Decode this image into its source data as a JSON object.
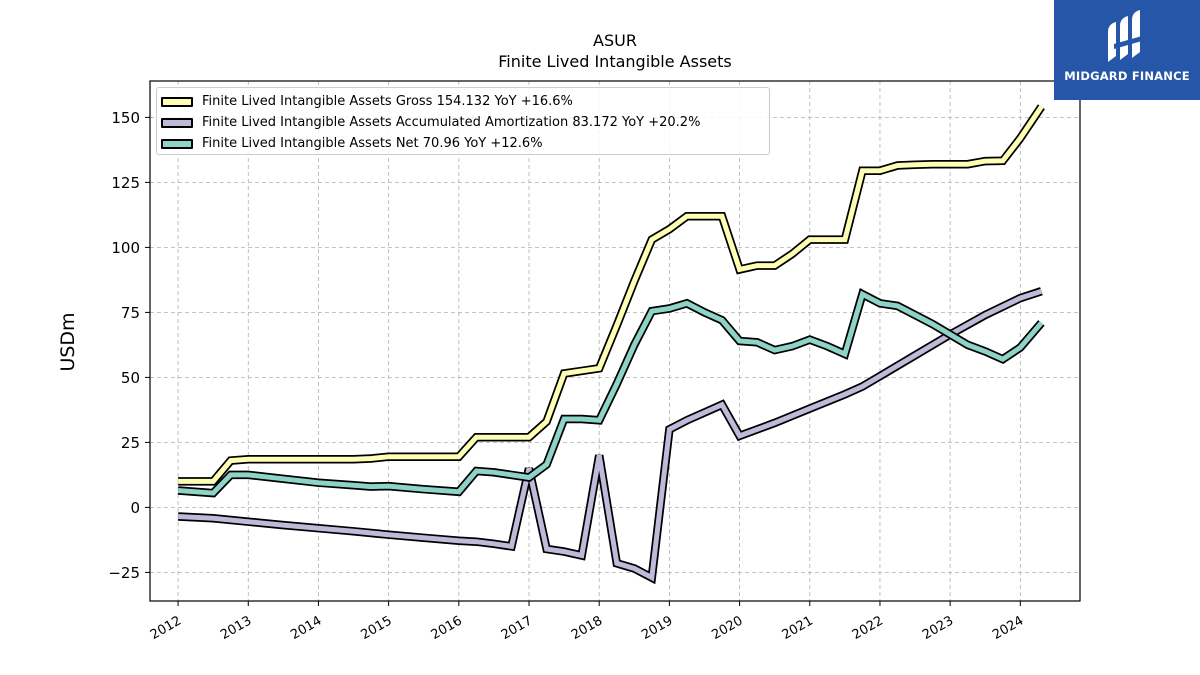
{
  "header": {
    "title": "ASUR",
    "subtitle": "Finite Lived Intangible Assets"
  },
  "logo": {
    "text": "MIDGARD FINANCE",
    "background": "#2656a8",
    "icon": "midgard-logo-icon"
  },
  "chart_data": {
    "type": "line",
    "title": "ASUR",
    "subtitle": "Finite Lived Intangible Assets",
    "xlabel": "",
    "ylabel": "USDm",
    "xlim": [
      2011.6,
      2024.85
    ],
    "ylim": [
      -36,
      164
    ],
    "x_ticks": [
      "2012",
      "2013",
      "2014",
      "2015",
      "2016",
      "2017",
      "2018",
      "2019",
      "2020",
      "2021",
      "2022",
      "2023",
      "2024"
    ],
    "y_ticks": [
      -25,
      0,
      25,
      50,
      75,
      100,
      125,
      150
    ],
    "y_tick_labels": [
      "−25",
      "0",
      "25",
      "50",
      "75",
      "100",
      "125",
      "150"
    ],
    "grid": true,
    "legend_position": "top-left",
    "series": [
      {
        "name": "Finite Lived Intangible Assets Gross",
        "legend_label": "Finite Lived Intangible Assets Gross  154.132 YoY +16.6%",
        "color": "#ffffb3",
        "points": [
          [
            2012.0,
            10
          ],
          [
            2012.5,
            10
          ],
          [
            2012.75,
            18
          ],
          [
            2013.0,
            18.5
          ],
          [
            2013.5,
            18.5
          ],
          [
            2014.0,
            18.5
          ],
          [
            2014.5,
            18.5
          ],
          [
            2014.75,
            18.8
          ],
          [
            2015.0,
            19.5
          ],
          [
            2015.5,
            19.5
          ],
          [
            2016.0,
            19.5
          ],
          [
            2016.25,
            27
          ],
          [
            2016.5,
            27
          ],
          [
            2016.75,
            27
          ],
          [
            2017.0,
            27
          ],
          [
            2017.25,
            33
          ],
          [
            2017.5,
            51.5
          ],
          [
            2017.75,
            52.5
          ],
          [
            2018.0,
            53.5
          ],
          [
            2018.25,
            70
          ],
          [
            2018.5,
            87
          ],
          [
            2018.75,
            103
          ],
          [
            2019.0,
            107
          ],
          [
            2019.25,
            112
          ],
          [
            2019.5,
            112
          ],
          [
            2019.75,
            112
          ],
          [
            2020.0,
            91.5
          ],
          [
            2020.25,
            93
          ],
          [
            2020.5,
            93
          ],
          [
            2020.75,
            97.5
          ],
          [
            2021.0,
            103
          ],
          [
            2021.25,
            103
          ],
          [
            2021.5,
            103
          ],
          [
            2021.75,
            129.5
          ],
          [
            2022.0,
            129.5
          ],
          [
            2022.25,
            131.5
          ],
          [
            2022.5,
            131.8
          ],
          [
            2022.75,
            132
          ],
          [
            2023.0,
            132
          ],
          [
            2023.25,
            132
          ],
          [
            2023.5,
            133.2
          ],
          [
            2023.75,
            133.3
          ],
          [
            2024.0,
            142
          ],
          [
            2024.3,
            154.132
          ]
        ]
      },
      {
        "name": "Finite Lived Intangible Assets Accumulated Amortization",
        "legend_label": "Finite Lived Intangible Assets Accumulated Amortization  83.172 YoY +20.2%",
        "color": "#bebada",
        "points": [
          [
            2012.0,
            -3.5
          ],
          [
            2012.5,
            -4.2
          ],
          [
            2013.0,
            -5.5
          ],
          [
            2013.5,
            -6.8
          ],
          [
            2014.0,
            -8
          ],
          [
            2014.5,
            -9.2
          ],
          [
            2015.0,
            -10.5
          ],
          [
            2015.5,
            -11.7
          ],
          [
            2016.0,
            -12.8
          ],
          [
            2016.25,
            -13.2
          ],
          [
            2016.5,
            -14
          ],
          [
            2016.75,
            -15
          ],
          [
            2017.0,
            15
          ],
          [
            2017.25,
            -16
          ],
          [
            2017.5,
            -17
          ],
          [
            2017.75,
            -18.5
          ],
          [
            2018.0,
            20
          ],
          [
            2018.25,
            -21.5
          ],
          [
            2018.5,
            -23.5
          ],
          [
            2018.75,
            -27
          ],
          [
            2019.0,
            30
          ],
          [
            2019.25,
            33.5
          ],
          [
            2019.5,
            36.5
          ],
          [
            2019.75,
            39.5
          ],
          [
            2020.0,
            27.5
          ],
          [
            2020.5,
            32.5
          ],
          [
            2021.0,
            38
          ],
          [
            2021.5,
            43.5
          ],
          [
            2021.75,
            46.5
          ],
          [
            2022.0,
            50.5
          ],
          [
            2022.5,
            58.5
          ],
          [
            2023.0,
            66.5
          ],
          [
            2023.5,
            74
          ],
          [
            2024.0,
            80.5
          ],
          [
            2024.3,
            83.172
          ]
        ]
      },
      {
        "name": "Finite Lived Intangible Assets Net",
        "legend_label": "Finite Lived Intangible Assets Net  70.96 YoY +12.6%",
        "color": "#8dd3c7",
        "points": [
          [
            2012.0,
            6.5
          ],
          [
            2012.5,
            5.5
          ],
          [
            2012.75,
            12.5
          ],
          [
            2013.0,
            12.5
          ],
          [
            2013.5,
            11
          ],
          [
            2014.0,
            9.5
          ],
          [
            2014.5,
            8.5
          ],
          [
            2014.75,
            8
          ],
          [
            2015.0,
            8.2
          ],
          [
            2015.5,
            7
          ],
          [
            2016.0,
            6
          ],
          [
            2016.25,
            14
          ],
          [
            2016.5,
            13.5
          ],
          [
            2016.75,
            12.5
          ],
          [
            2017.0,
            11.5
          ],
          [
            2017.25,
            16.5
          ],
          [
            2017.5,
            34
          ],
          [
            2017.75,
            34
          ],
          [
            2018.0,
            33.5
          ],
          [
            2018.25,
            47.5
          ],
          [
            2018.5,
            62.5
          ],
          [
            2018.75,
            75.5
          ],
          [
            2019.0,
            76.5
          ],
          [
            2019.25,
            78.5
          ],
          [
            2019.5,
            75
          ],
          [
            2019.75,
            72
          ],
          [
            2020.0,
            64
          ],
          [
            2020.25,
            63.5
          ],
          [
            2020.5,
            60.5
          ],
          [
            2020.75,
            62
          ],
          [
            2021.0,
            64.5
          ],
          [
            2021.25,
            62
          ],
          [
            2021.5,
            59
          ],
          [
            2021.75,
            82
          ],
          [
            2022.0,
            78.5
          ],
          [
            2022.25,
            77.5
          ],
          [
            2022.5,
            74
          ],
          [
            2022.75,
            70.5
          ],
          [
            2023.0,
            66.5
          ],
          [
            2023.25,
            62.5
          ],
          [
            2023.5,
            60
          ],
          [
            2023.75,
            57
          ],
          [
            2024.0,
            61.5
          ],
          [
            2024.3,
            70.96
          ]
        ]
      }
    ]
  }
}
